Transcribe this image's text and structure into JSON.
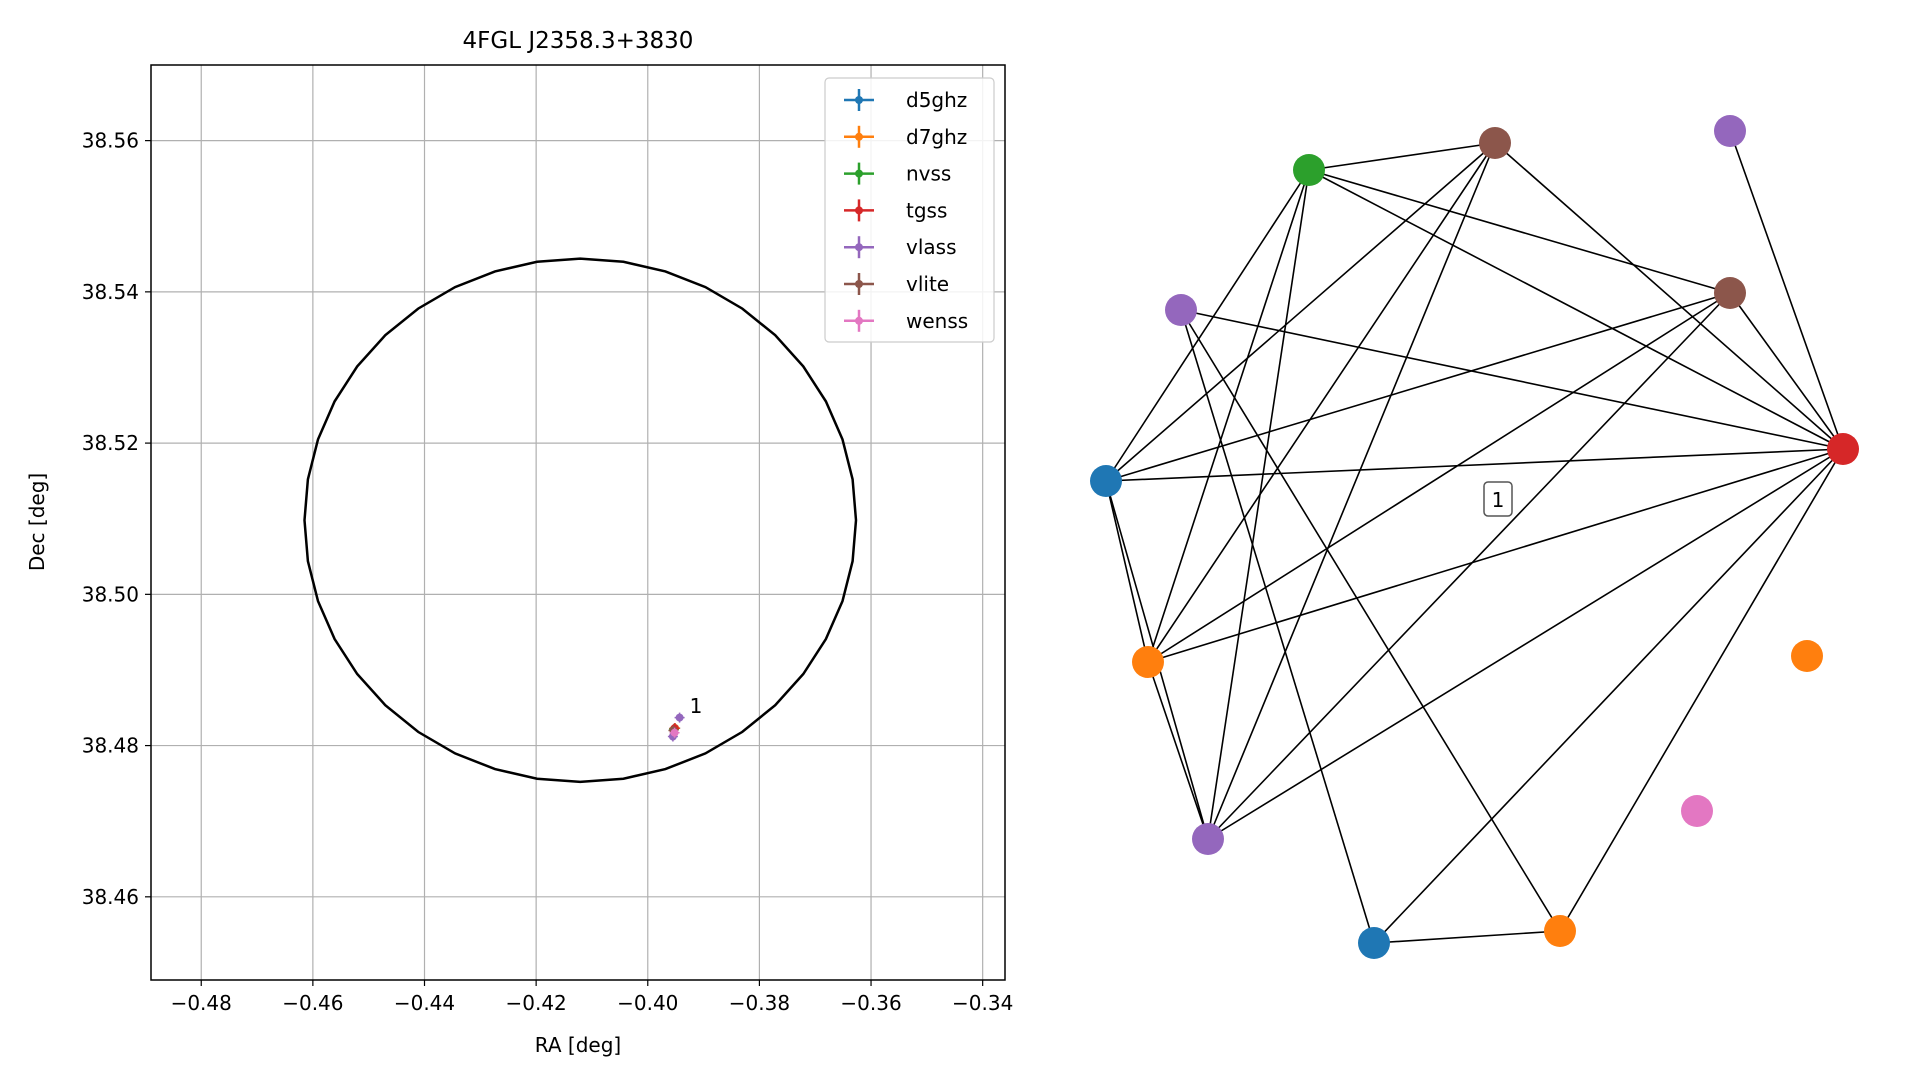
{
  "chart_data": [
    {
      "type": "scatter",
      "title": "4FGL J2358.3+3830",
      "xlabel": "RA [deg]",
      "ylabel": "Dec [deg]",
      "xlim": [
        -0.489,
        -0.336
      ],
      "ylim": [
        38.449,
        38.57
      ],
      "xticks": [
        -0.48,
        -0.46,
        -0.44,
        -0.42,
        -0.4,
        -0.38,
        -0.36,
        -0.34
      ],
      "xtick_labels": [
        "−0.48",
        "−0.46",
        "−0.44",
        "−0.42",
        "−0.40",
        "−0.38",
        "−0.36",
        "−0.34"
      ],
      "yticks": [
        38.46,
        38.48,
        38.5,
        38.52,
        38.54,
        38.56
      ],
      "ytick_labels": [
        "38.46",
        "38.48",
        "38.50",
        "38.52",
        "38.54",
        "38.56"
      ],
      "grid": true,
      "legend_position": "top-right",
      "ellipse": {
        "center": [
          -0.4121,
          38.5098
        ],
        "ra_halfwidth": 0.0494,
        "dec_halfheight": 0.0346
      },
      "series": [
        {
          "name": "d5ghz",
          "color": "#1f77b4",
          "points": [
            [
              -0.3951,
              38.4823
            ]
          ]
        },
        {
          "name": "d7ghz",
          "color": "#ff7f0e",
          "points": [
            [
              -0.3951,
              38.4823
            ]
          ]
        },
        {
          "name": "nvss",
          "color": "#2ca02c",
          "points": [
            [
              -0.3953,
              38.4822
            ]
          ]
        },
        {
          "name": "tgss",
          "color": "#d62728",
          "points": [
            [
              -0.3952,
              38.4823
            ]
          ]
        },
        {
          "name": "vlass",
          "color": "#9467bd",
          "points": [
            [
              -0.3943,
              38.4837
            ],
            [
              -0.3955,
              38.4812
            ]
          ]
        },
        {
          "name": "vlite",
          "color": "#8c564b",
          "points": [
            [
              -0.3954,
              38.482
            ]
          ]
        },
        {
          "name": "wenss",
          "color": "#e377c2",
          "points": [
            [
              -0.3952,
              38.4817
            ]
          ]
        }
      ],
      "annotations": [
        {
          "text": "1",
          "x": -0.3925,
          "y": 38.4843
        }
      ]
    },
    {
      "type": "network",
      "label": "1",
      "nodes": [
        {
          "color": "#9467bd"
        },
        {
          "color": "#8c564b"
        },
        {
          "color": "#d62728"
        },
        {
          "color": "#ff7f0e"
        },
        {
          "color": "#e377c2"
        },
        {
          "color": "#ff7f0e"
        },
        {
          "color": "#1f77b4"
        },
        {
          "color": "#9467bd"
        },
        {
          "color": "#ff7f0e"
        },
        {
          "color": "#1f77b4"
        },
        {
          "color": "#9467bd"
        },
        {
          "color": "#2ca02c"
        },
        {
          "color": "#8c564b"
        }
      ],
      "edges": [
        [
          0,
          2
        ],
        [
          1,
          2
        ],
        [
          1,
          7
        ],
        [
          1,
          8
        ],
        [
          1,
          9
        ],
        [
          1,
          11
        ],
        [
          2,
          5
        ],
        [
          2,
          6
        ],
        [
          2,
          7
        ],
        [
          2,
          8
        ],
        [
          2,
          9
        ],
        [
          2,
          10
        ],
        [
          2,
          11
        ],
        [
          2,
          12
        ],
        [
          5,
          6
        ],
        [
          5,
          10
        ],
        [
          6,
          10
        ],
        [
          7,
          8
        ],
        [
          7,
          9
        ],
        [
          7,
          11
        ],
        [
          7,
          12
        ],
        [
          8,
          9
        ],
        [
          8,
          11
        ],
        [
          8,
          12
        ],
        [
          9,
          11
        ],
        [
          9,
          12
        ],
        [
          11,
          12
        ]
      ]
    }
  ]
}
